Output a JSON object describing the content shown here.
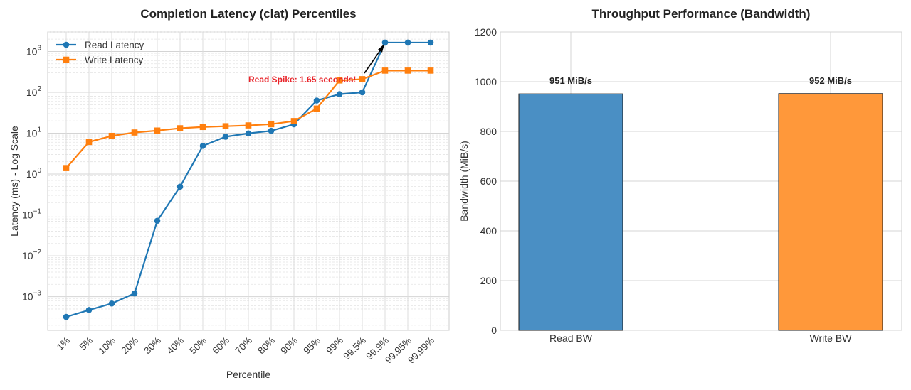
{
  "chart_data": [
    {
      "type": "line",
      "title": "Completion Latency (clat) Percentiles",
      "xlabel": "Percentile",
      "ylabel": "Latency (ms) - Log Scale",
      "yscale": "log",
      "ylim": [
        0.00015,
        3000
      ],
      "grid": true,
      "legend": "top-left",
      "categories": [
        "1%",
        "5%",
        "10%",
        "20%",
        "30%",
        "40%",
        "50%",
        "60%",
        "70%",
        "80%",
        "90%",
        "95%",
        "99%",
        "99.5%",
        "99.9%",
        "99.95%",
        "99.99%"
      ],
      "ytick_labels": [
        {
          "value": 0.001,
          "base": "10",
          "exp": "−3"
        },
        {
          "value": 0.01,
          "base": "10",
          "exp": "−2"
        },
        {
          "value": 0.1,
          "base": "10",
          "exp": "−1"
        },
        {
          "value": 1,
          "base": "10",
          "exp": "0"
        },
        {
          "value": 10,
          "base": "10",
          "exp": "1"
        },
        {
          "value": 100,
          "base": "10",
          "exp": "2"
        },
        {
          "value": 1000,
          "base": "10",
          "exp": "3"
        }
      ],
      "series": [
        {
          "name": "Read Latency",
          "color": "#1f77b4",
          "marker": "circle",
          "values": [
            0.00032,
            0.00047,
            0.00068,
            0.0012,
            0.072,
            0.49,
            4.9,
            8.2,
            9.9,
            11.4,
            16.5,
            63,
            90,
            100,
            1650,
            1650,
            1650
          ]
        },
        {
          "name": "Write Latency",
          "color": "#ff7f0e",
          "marker": "square",
          "values": [
            1.4,
            6.1,
            8.6,
            10.4,
            11.6,
            13.2,
            14.2,
            14.8,
            15.5,
            16.6,
            19.8,
            40,
            195,
            210,
            340,
            340,
            340
          ]
        }
      ],
      "annotation": {
        "text": "Read Spike: 1.65 seconds!",
        "color": "#e8242a",
        "arrow_color": "#000000",
        "point": {
          "x": "99.9%",
          "y": 1650
        }
      }
    },
    {
      "type": "bar",
      "title": "Throughput Performance (Bandwidth)",
      "xlabel": "",
      "ylabel": "Bandwidth (MiB/s)",
      "ylim": [
        0,
        1200
      ],
      "yticks": [
        0,
        200,
        400,
        600,
        800,
        1000,
        1200
      ],
      "grid": true,
      "categories": [
        "Read BW",
        "Write BW"
      ],
      "values": [
        951,
        952
      ],
      "colors": [
        "#4a8fc4",
        "#ff983a"
      ],
      "data_labels": [
        "951 MiB/s",
        "952 MiB/s"
      ]
    }
  ]
}
